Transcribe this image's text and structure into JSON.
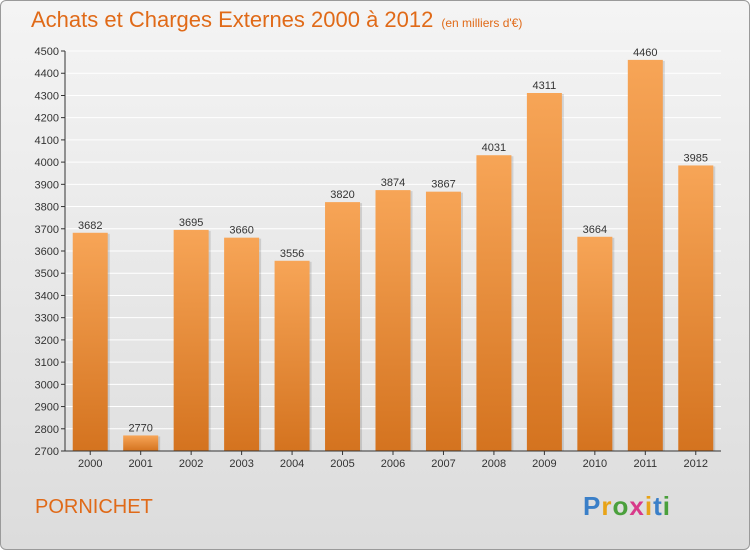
{
  "chart_data": {
    "type": "bar",
    "title": "Achats et Charges Externes 2000 à 2012",
    "subtitle": "(en milliers d'€)",
    "categories": [
      "2000",
      "2001",
      "2002",
      "2003",
      "2004",
      "2005",
      "2006",
      "2007",
      "2008",
      "2009",
      "2010",
      "2011",
      "2012"
    ],
    "values": [
      3682,
      2770,
      3695,
      3660,
      3556,
      3820,
      3874,
      3867,
      4031,
      4311,
      3664,
      4460,
      3985
    ],
    "ylim": [
      2700,
      4500
    ],
    "yticks": [
      2700,
      2800,
      2900,
      3000,
      3100,
      3200,
      3300,
      3400,
      3500,
      3600,
      3700,
      3800,
      3900,
      4000,
      4100,
      4200,
      4300,
      4400,
      4500
    ],
    "grid": true,
    "bar_color": "#f08a2e",
    "title_color": "#e06a18"
  },
  "footer": {
    "town": "PORNICHET",
    "logo_letters": [
      {
        "ch": "P",
        "color": "#3a7fc8"
      },
      {
        "ch": "r",
        "color": "#e8a317"
      },
      {
        "ch": "o",
        "color": "#4aa03c"
      },
      {
        "ch": "x",
        "color": "#d83a8a"
      },
      {
        "ch": "i",
        "color": "#e8a317"
      },
      {
        "ch": "t",
        "color": "#3a7fc8"
      },
      {
        "ch": "i",
        "color": "#4aa03c"
      }
    ]
  }
}
